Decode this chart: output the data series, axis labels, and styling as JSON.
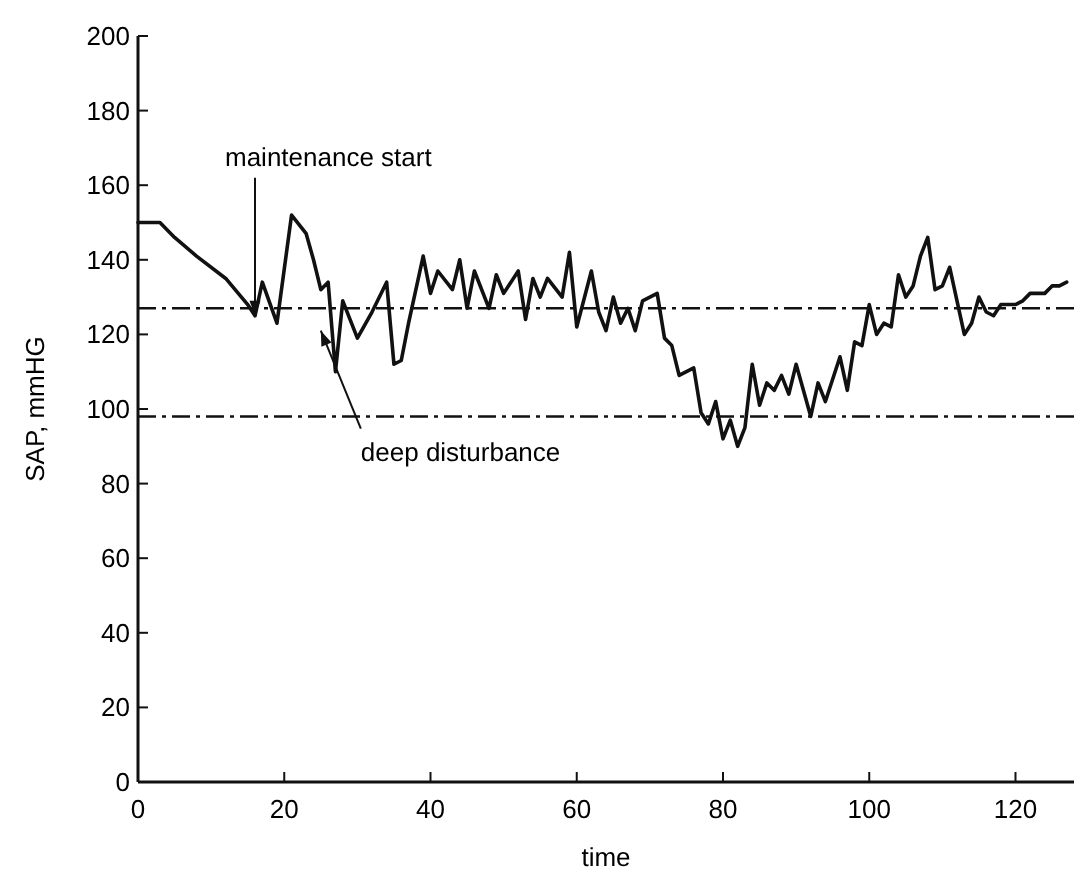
{
  "chart_data": {
    "type": "line",
    "xlabel": "time",
    "ylabel": "SAP, mmHG",
    "xlim": [
      0,
      128
    ],
    "ylim": [
      0,
      200
    ],
    "xticks": [
      0,
      20,
      40,
      60,
      80,
      100,
      120
    ],
    "yticks": [
      0,
      20,
      40,
      60,
      80,
      100,
      120,
      140,
      160,
      180,
      200
    ],
    "grid": false,
    "marker": "none",
    "line_style": "solid",
    "series": [
      {
        "color": "#111111",
        "x": [
          0,
          3,
          5,
          8,
          12,
          15,
          16,
          17,
          19,
          21,
          23,
          24,
          25,
          26,
          27,
          28,
          30,
          32,
          34,
          35,
          36,
          37,
          39,
          40,
          41,
          43,
          44,
          45,
          46,
          48,
          49,
          50,
          52,
          53,
          54,
          55,
          56,
          58,
          59,
          60,
          62,
          63,
          64,
          65,
          66,
          67,
          68,
          69,
          71,
          72,
          73,
          74,
          76,
          77,
          78,
          79,
          80,
          81,
          82,
          83,
          84,
          85,
          86,
          87,
          88,
          89,
          90,
          92,
          93,
          94,
          96,
          97,
          98,
          99,
          100,
          101,
          102,
          103,
          104,
          105,
          106,
          107,
          108,
          109,
          110,
          111,
          113,
          114,
          115,
          116,
          117,
          118,
          120,
          121,
          122,
          124,
          125,
          126,
          127
        ],
        "values": [
          150,
          150,
          146,
          141,
          135,
          128,
          125,
          134,
          123,
          152,
          147,
          140,
          132,
          134,
          110,
          129,
          119,
          126,
          134,
          112,
          113,
          123,
          141,
          131,
          137,
          132,
          140,
          127,
          137,
          127,
          136,
          131,
          137,
          124,
          135,
          130,
          135,
          130,
          142,
          122,
          137,
          126,
          121,
          130,
          123,
          127,
          121,
          129,
          131,
          119,
          117,
          109,
          111,
          99,
          96,
          102,
          92,
          97,
          90,
          95,
          112,
          101,
          107,
          105,
          109,
          104,
          112,
          98,
          107,
          102,
          114,
          105,
          118,
          117,
          128,
          120,
          123,
          122,
          136,
          130,
          133,
          141,
          146,
          132,
          133,
          138,
          120,
          123,
          130,
          126,
          125,
          128,
          128,
          129,
          131,
          131,
          133,
          133,
          134
        ]
      }
    ],
    "ref_lines": [
      {
        "axis": "y",
        "value": 127,
        "color": "#111111",
        "line_style": "dashed"
      },
      {
        "axis": "y",
        "value": 98,
        "color": "#111111",
        "line_style": "dashed"
      }
    ],
    "annotations": [
      {
        "text": "maintenance start",
        "x": 16,
        "y": 125
      },
      {
        "text": "deep disturbance",
        "x": 25,
        "y": 121
      }
    ]
  }
}
